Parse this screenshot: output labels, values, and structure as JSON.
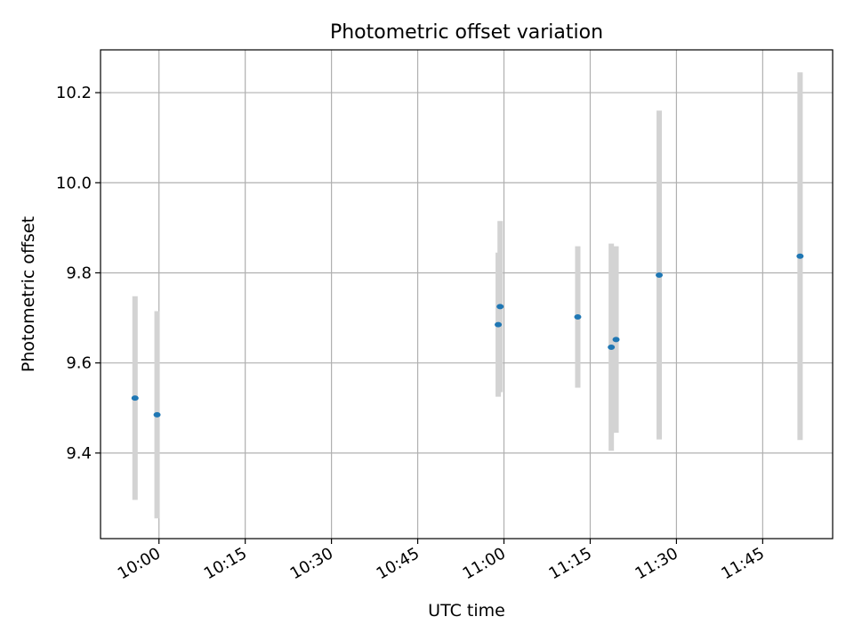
{
  "chart_data": {
    "type": "scatter",
    "title": "Photometric offset variation",
    "xlabel": "UTC time",
    "ylabel": "Photometric offset",
    "x_unit": "time",
    "xlim": [
      "09:49:50",
      "11:57:10"
    ],
    "ylim": [
      9.21,
      10.295
    ],
    "x_ticks": [
      "10:00",
      "10:15",
      "10:30",
      "10:45",
      "11:00",
      "11:15",
      "11:30",
      "11:45"
    ],
    "y_ticks": [
      9.4,
      9.6,
      9.8,
      10.0,
      10.2
    ],
    "grid": true,
    "series": [
      {
        "x": [
          "09:55:50",
          "09:59:40",
          "10:59:00",
          "10:59:20",
          "11:12:50",
          "11:18:40",
          "11:19:30",
          "11:27:00",
          "11:51:30"
        ],
        "y": [
          9.522,
          9.485,
          9.685,
          9.725,
          9.702,
          9.635,
          9.652,
          9.795,
          9.837
        ],
        "yerr": [
          0.226,
          0.23,
          0.16,
          0.19,
          0.157,
          0.23,
          0.207,
          0.365,
          0.408
        ],
        "marker_color": "#1f77b4",
        "errorbar_color": "#d3d3d3"
      }
    ]
  }
}
